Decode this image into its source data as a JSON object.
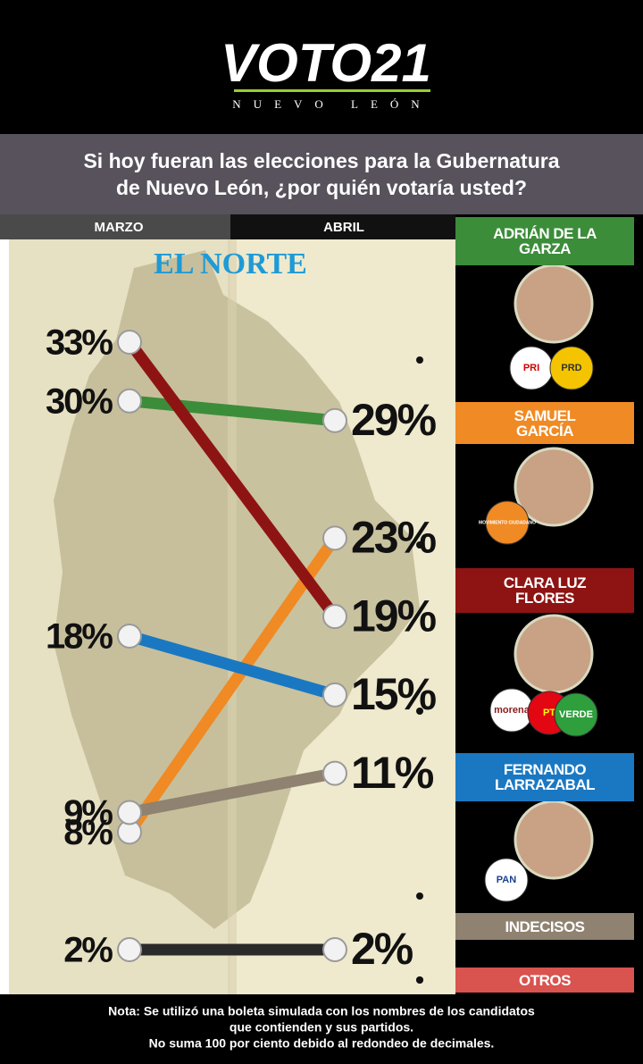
{
  "header": {
    "logo": "VOTO21",
    "region": "NUEVO LEÓN"
  },
  "source": "EL NORTE",
  "logos": [
    "PRI",
    "PRD",
    "MOVIMIENTO CIUDADANO",
    "morena",
    "PT",
    "VERDE",
    "PAN"
  ],
  "chart_data": {
    "type": "slope",
    "title": "Si hoy fueran las elecciones para la Gubernatura de Nuevo León, ¿por quién votaría usted?",
    "categories": [
      "MARZO",
      "ABRIL"
    ],
    "series": [
      {
        "name": "ADRIÁN DE LA GARZA",
        "color": "#3c8d3a",
        "values": [
          30,
          29
        ],
        "value_labels": [
          "30%",
          "29%"
        ]
      },
      {
        "name": "SAMUEL GARCÍA",
        "color": "#f08a24",
        "values": [
          8,
          23
        ],
        "value_labels": [
          "8%",
          "23%"
        ]
      },
      {
        "name": "CLARA LUZ FLORES",
        "color": "#8e1414",
        "values": [
          33,
          19
        ],
        "value_labels": [
          "33%",
          "19%"
        ]
      },
      {
        "name": "FERNANDO LARRAZABAL",
        "color": "#1a78c2",
        "values": [
          18,
          15
        ],
        "value_labels": [
          "18%",
          "15%"
        ]
      },
      {
        "name": "INDECISOS",
        "color": "#8f8270",
        "values": [
          9,
          11
        ],
        "value_labels": [
          "9%",
          "11%"
        ]
      },
      {
        "name": "OTROS",
        "color": "#2a2a2a",
        "values": [
          2,
          2
        ],
        "value_labels": [
          "2%",
          "2%"
        ]
      }
    ],
    "note": [
      "Nota: Se utilizó una boleta simulada con los nombres de los candidatos",
      "que contienden y sus partidos.",
      "No suma 100 por ciento debido al redondeo de decimales."
    ]
  }
}
